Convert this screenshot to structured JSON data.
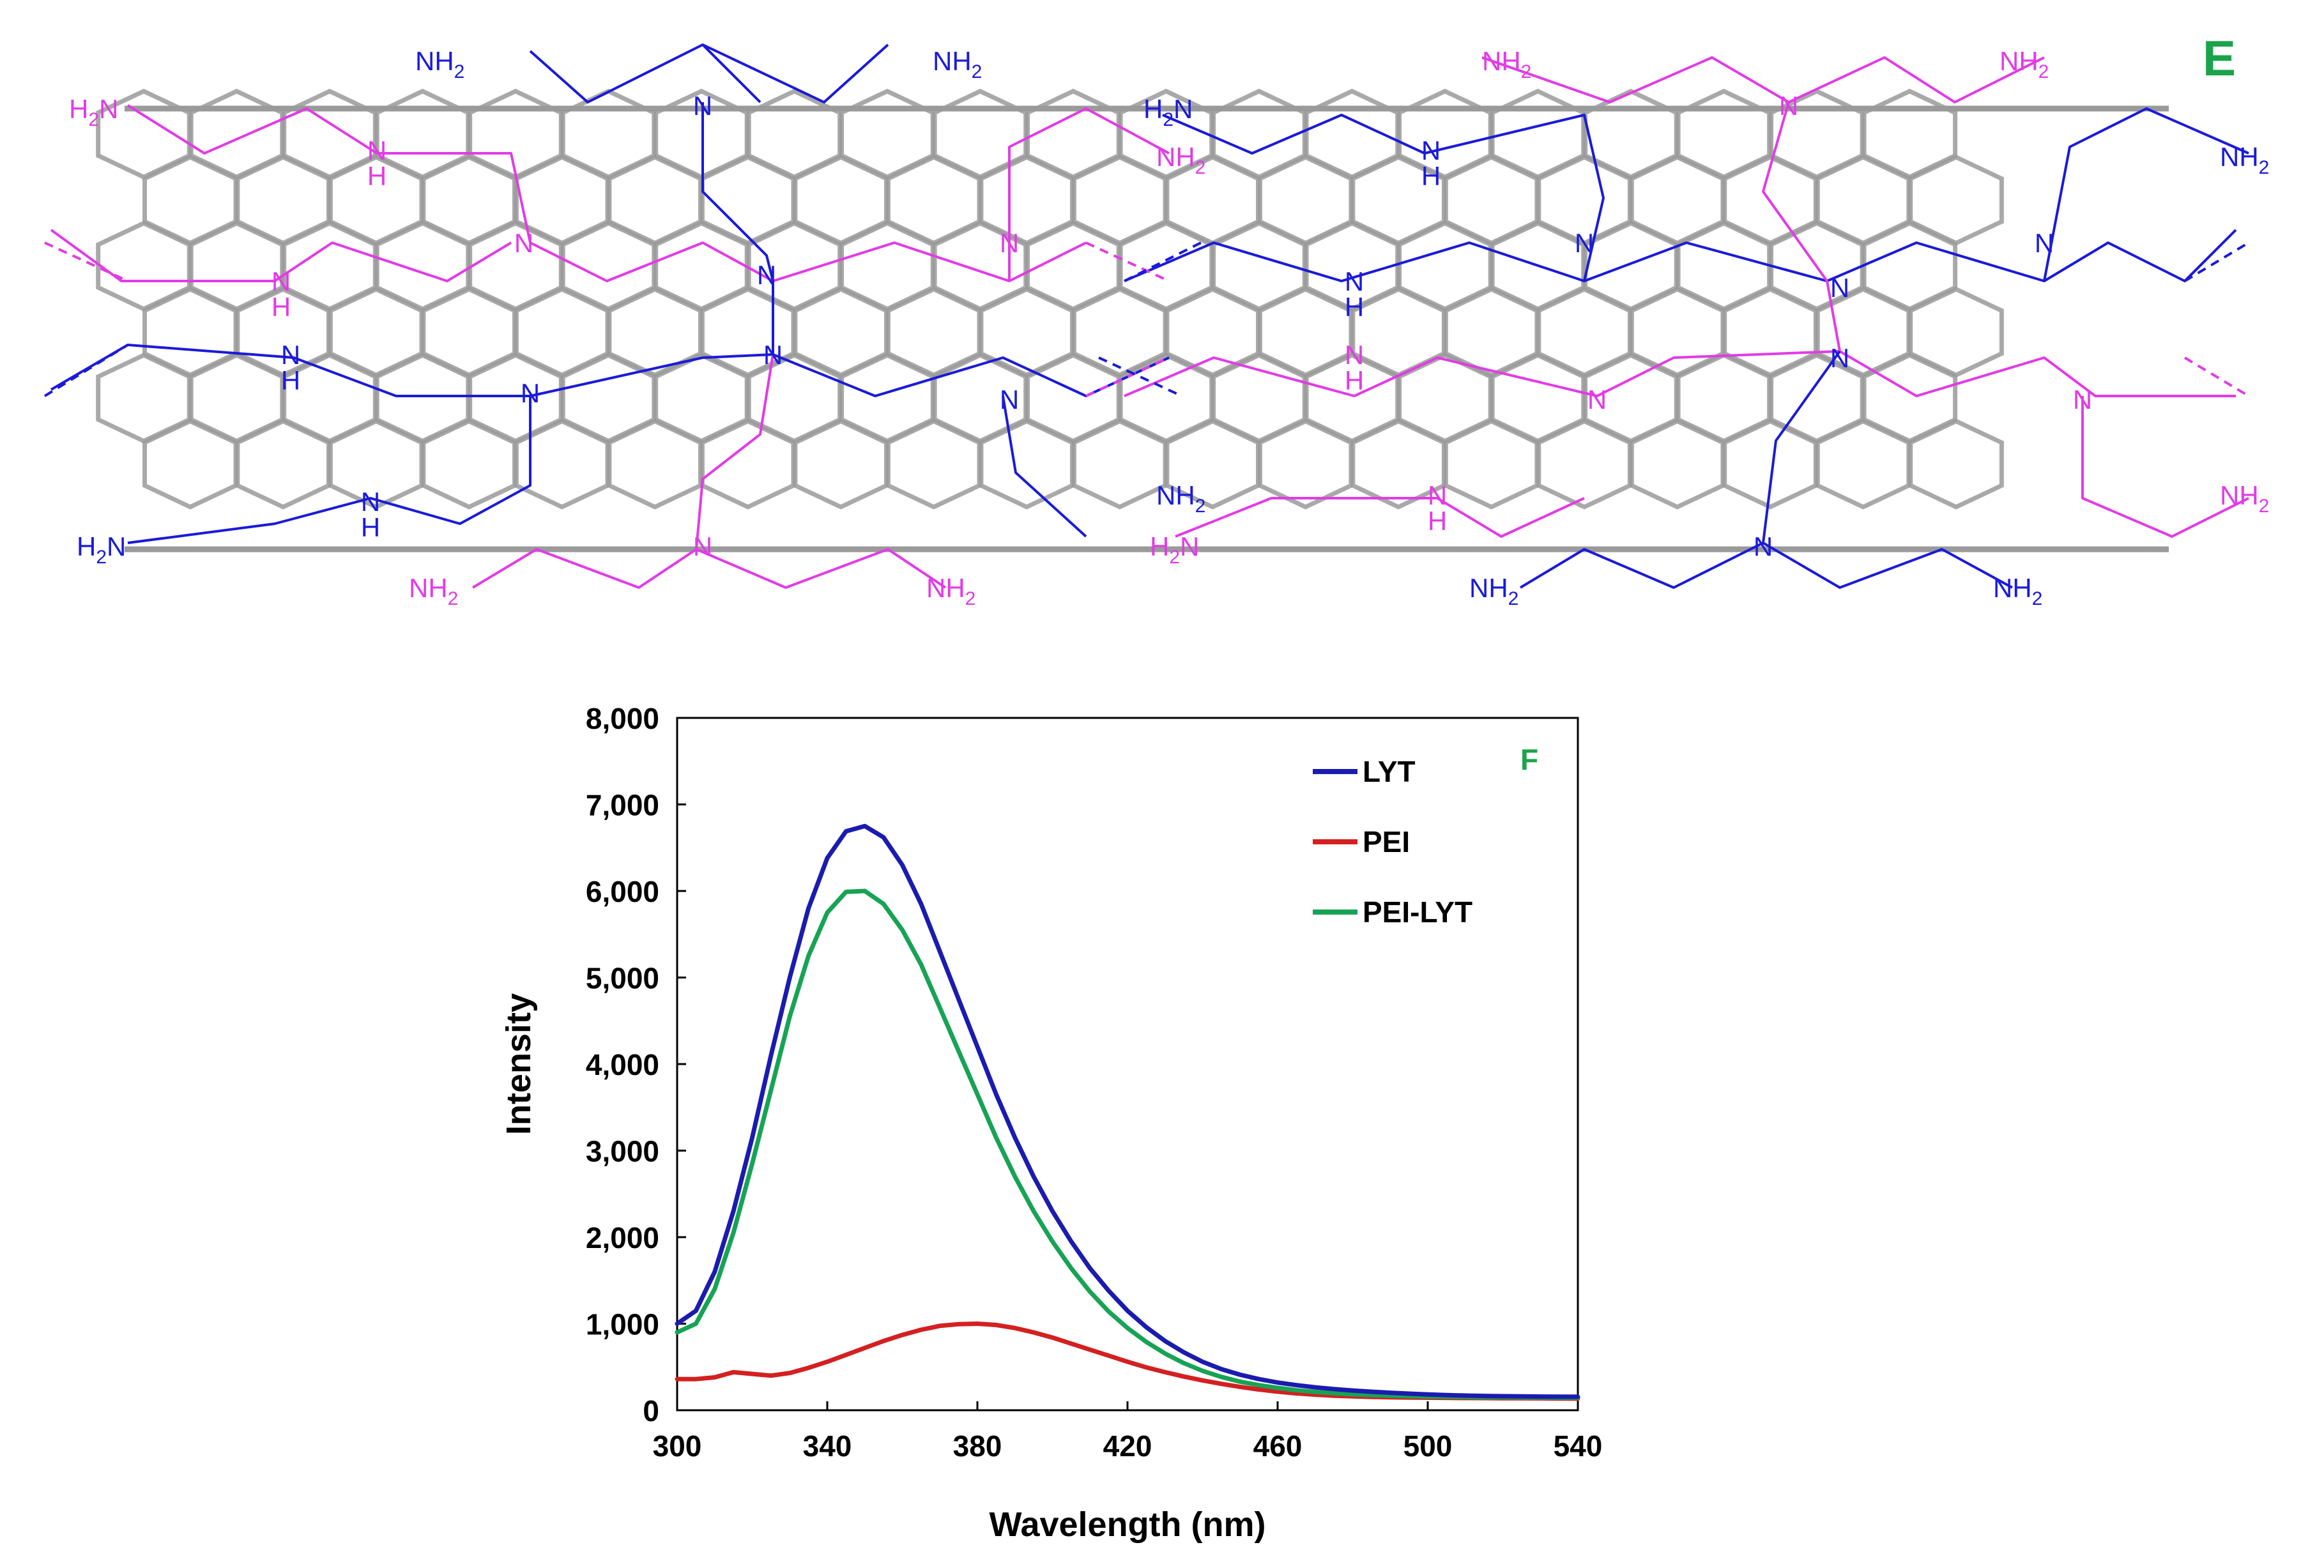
{
  "panel_e": {
    "panel_label": "E",
    "label_color": "#1aa34a",
    "amine_primary": "NH",
    "amine_secondary": "H",
    "tertiary_n": "N",
    "subscript_two": "2",
    "h2n_prefix": "H",
    "pei_colors": [
      "#1a1adb",
      "#e23be6"
    ],
    "tube_color": "#9a9a9a"
  },
  "chart_data": {
    "type": "line",
    "panel_label": "F",
    "panel_label_color": "#1aa34a",
    "title": "",
    "xlabel": "Wavelength (nm)",
    "ylabel": "Intensity",
    "xlim": [
      300,
      540
    ],
    "ylim": [
      0,
      8000
    ],
    "xticks": [
      300,
      340,
      380,
      420,
      460,
      500,
      540
    ],
    "yticks": [
      0,
      1000,
      2000,
      3000,
      4000,
      5000,
      6000,
      7000,
      8000
    ],
    "xtick_labels": [
      "300",
      "340",
      "380",
      "420",
      "460",
      "500",
      "540"
    ],
    "ytick_labels": [
      "0",
      "1,000",
      "2,000",
      "3,000",
      "4,000",
      "5,000",
      "6,000",
      "7,000",
      "8,000"
    ],
    "legend_position": "top-right",
    "grid": false,
    "x": [
      300,
      305,
      310,
      315,
      320,
      325,
      330,
      335,
      340,
      345,
      350,
      355,
      360,
      365,
      370,
      375,
      380,
      385,
      390,
      395,
      400,
      405,
      410,
      415,
      420,
      425,
      430,
      435,
      440,
      445,
      450,
      455,
      460,
      465,
      470,
      475,
      480,
      485,
      490,
      495,
      500,
      505,
      510,
      515,
      520,
      525,
      530,
      535,
      540
    ],
    "series": [
      {
        "name": "LYT",
        "color": "#1b1bb0",
        "values": [
          1000,
          1150,
          1600,
          2300,
          3150,
          4100,
          5000,
          5800,
          6380,
          6690,
          6750,
          6620,
          6300,
          5850,
          5300,
          4750,
          4200,
          3650,
          3150,
          2700,
          2300,
          1950,
          1640,
          1380,
          1150,
          960,
          800,
          670,
          560,
          475,
          410,
          360,
          320,
          290,
          265,
          245,
          228,
          214,
          202,
          192,
          183,
          176,
          170,
          165,
          162,
          160,
          158,
          157,
          156
        ]
      },
      {
        "name": "PEI",
        "color": "#d42020",
        "values": [
          360,
          360,
          380,
          440,
          420,
          400,
          430,
          490,
          560,
          640,
          720,
          800,
          870,
          930,
          975,
          995,
          1000,
          985,
          950,
          900,
          840,
          770,
          700,
          630,
          560,
          495,
          440,
          390,
          345,
          305,
          270,
          240,
          215,
          195,
          180,
          168,
          160,
          154,
          150,
          147,
          145,
          143,
          141,
          140,
          139,
          138,
          137,
          136,
          135
        ]
      },
      {
        "name": "PEI-LYT",
        "color": "#17a355",
        "values": [
          900,
          1000,
          1400,
          2050,
          2850,
          3700,
          4550,
          5250,
          5750,
          5990,
          6000,
          5850,
          5550,
          5150,
          4650,
          4150,
          3650,
          3150,
          2700,
          2300,
          1950,
          1640,
          1370,
          1140,
          950,
          790,
          655,
          545,
          455,
          385,
          330,
          290,
          258,
          232,
          212,
          196,
          184,
          175,
          168,
          162,
          158,
          155,
          152,
          150,
          149,
          148,
          147,
          146,
          145
        ]
      }
    ]
  }
}
